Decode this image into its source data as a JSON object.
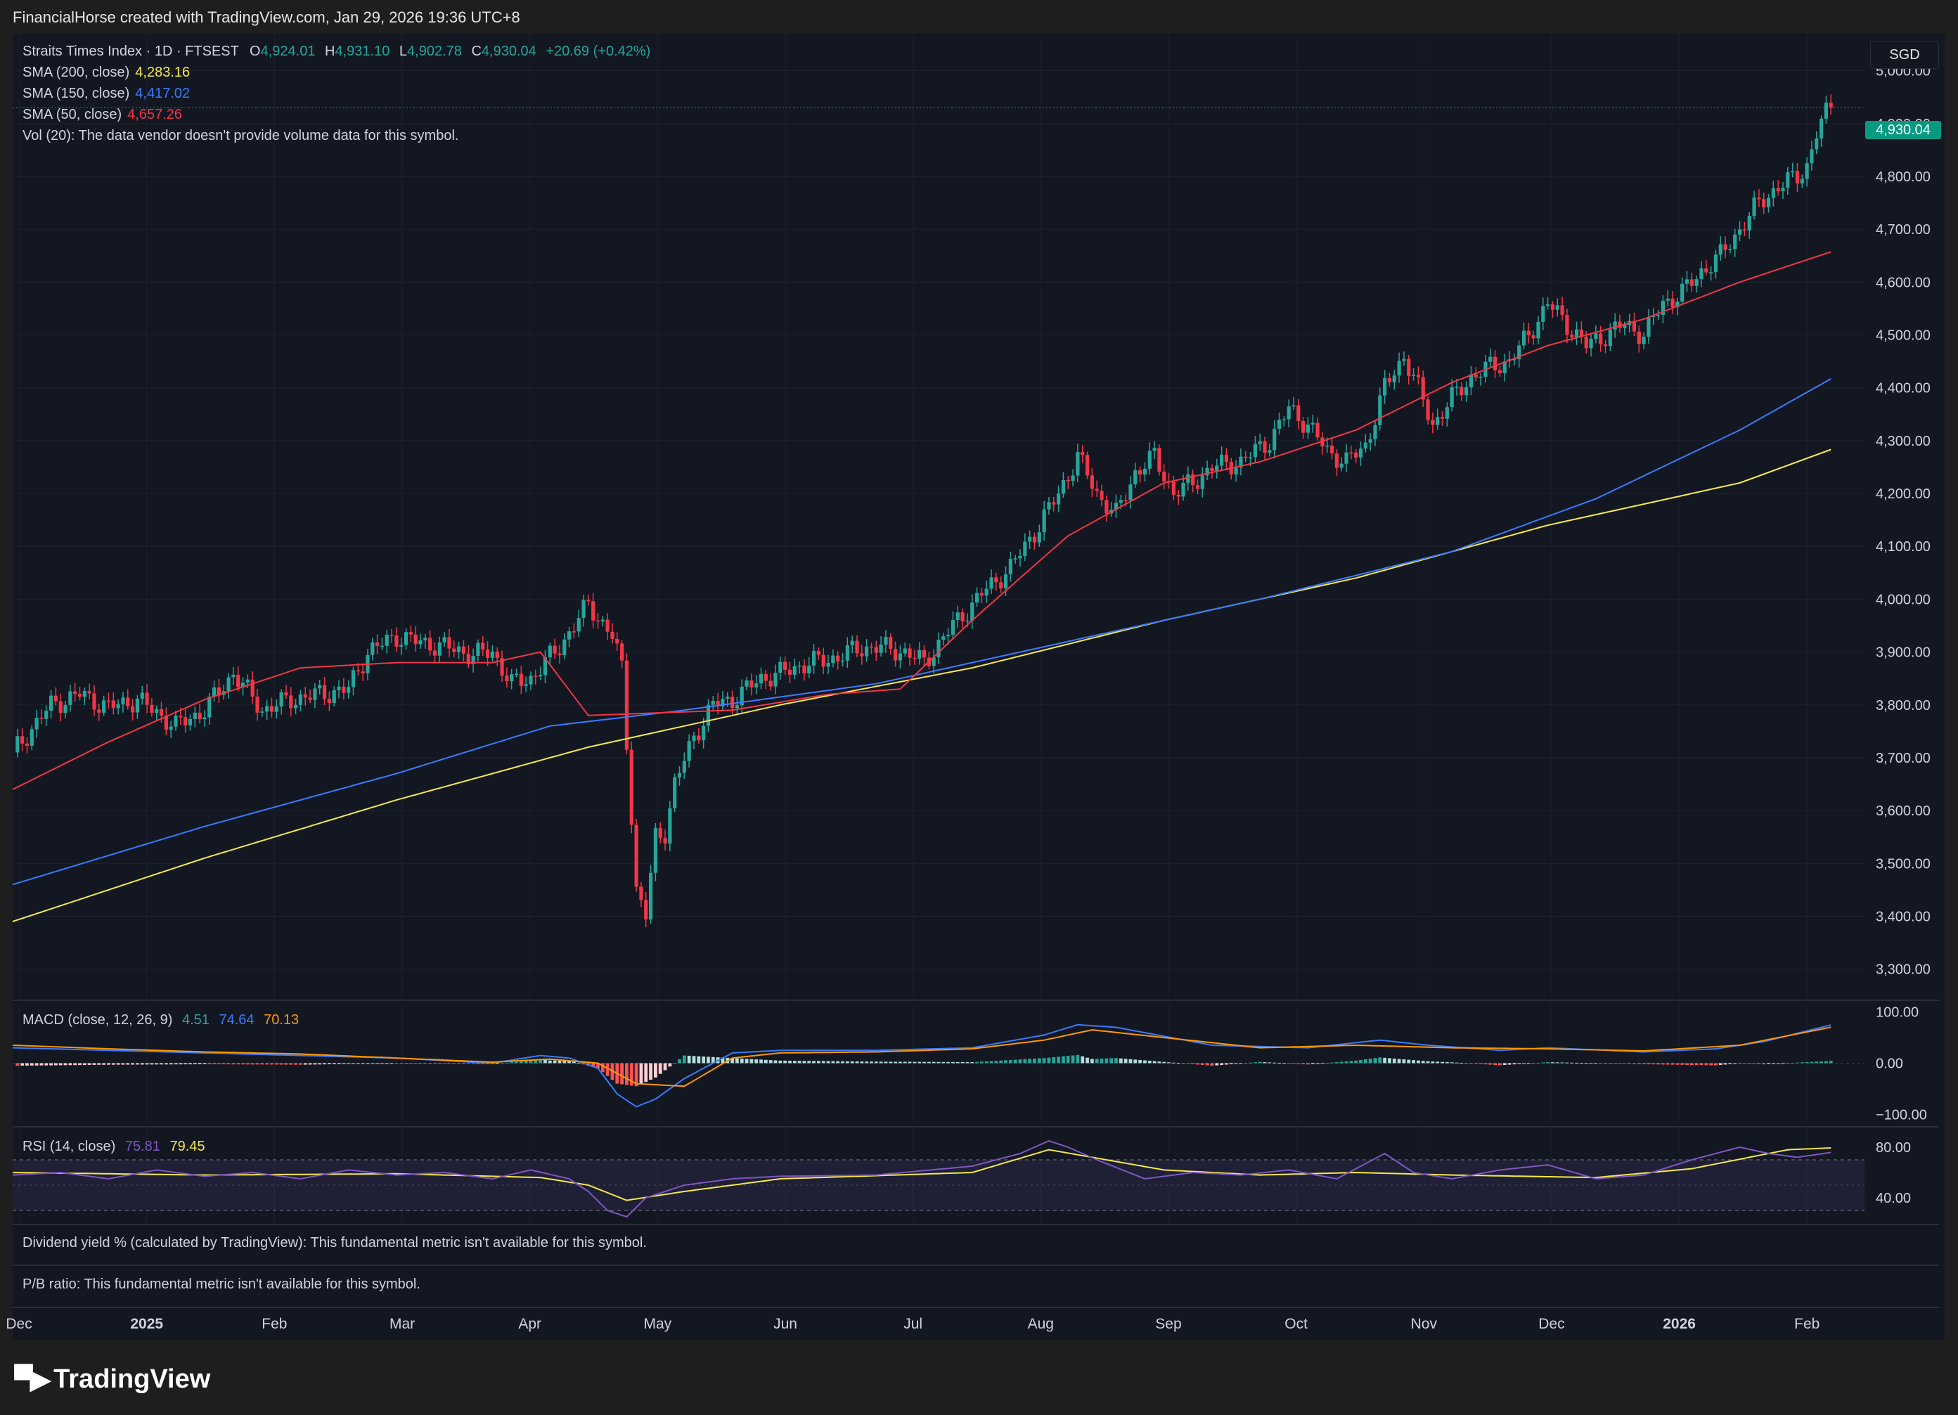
{
  "header": {
    "attribution": "FinancialHorse created with TradingView.com, Jan 29, 2026 19:36 UTC+8"
  },
  "currency_badge": "SGD",
  "legend": {
    "symbol": "Straits Times Index · 1D · FTSEST",
    "ohlc": {
      "o_label": "O",
      "o": "4,924.01",
      "h_label": "H",
      "h": "4,931.10",
      "l_label": "L",
      "l": "4,902.78",
      "c_label": "C",
      "c": "4,930.04",
      "change": "+20.69 (+0.42%)"
    },
    "sma200": {
      "label": "SMA (200, close)",
      "value": "4,283.16",
      "color": "#f5e94a"
    },
    "sma150": {
      "label": "SMA (150, close)",
      "value": "4,417.02",
      "color": "#3a7bff"
    },
    "sma50": {
      "label": "SMA (50, close)",
      "value": "4,657.26",
      "color": "#f23645"
    },
    "vol": "Vol (20): The data vendor doesn't provide volume data for this symbol."
  },
  "last_price_tag": "4,930.04",
  "macd_legend": {
    "label": "MACD (close, 12, 26, 9)",
    "hist": "4.51",
    "macd": "74.64",
    "signal": "70.13"
  },
  "rsi_legend": {
    "label": "RSI (14, close)",
    "rsi": "75.81",
    "ma": "79.45"
  },
  "messages": {
    "dividend": "Dividend yield % (calculated by TradingView): This fundamental metric isn't available for this symbol.",
    "pb": "P/B ratio: This fundamental metric isn't available for this symbol."
  },
  "logo_text": "TradingView",
  "chart_data": {
    "type": "line",
    "price_axis": {
      "ticks": [
        "5,000.00",
        "4,900.00",
        "4,800.00",
        "4,700.00",
        "4,600.00",
        "4,500.00",
        "4,400.00",
        "4,300.00",
        "4,200.00",
        "4,100.00",
        "4,000.00",
        "3,900.00",
        "3,800.00",
        "3,700.00",
        "3,600.00",
        "3,500.00",
        "3,400.00",
        "3,300.00"
      ],
      "range": [
        3245,
        5070
      ]
    },
    "time_axis": [
      "Dec",
      "2025",
      "Feb",
      "Mar",
      "Apr",
      "May",
      "Jun",
      "Jul",
      "Aug",
      "Sep",
      "Oct",
      "Nov",
      "Dec",
      "2026",
      "Feb"
    ],
    "close": [
      [
        0,
        3710
      ],
      [
        8,
        3800
      ],
      [
        14,
        3820
      ],
      [
        20,
        3795
      ],
      [
        26,
        3810
      ],
      [
        34,
        3760
      ],
      [
        40,
        3790
      ],
      [
        46,
        3860
      ],
      [
        52,
        3790
      ],
      [
        58,
        3810
      ],
      [
        64,
        3820
      ],
      [
        70,
        3830
      ],
      [
        74,
        3900
      ],
      [
        80,
        3930
      ],
      [
        84,
        3920
      ],
      [
        90,
        3910
      ],
      [
        96,
        3895
      ],
      [
        100,
        3900
      ],
      [
        104,
        3840
      ],
      [
        108,
        3850
      ],
      [
        114,
        3910
      ],
      [
        120,
        3990
      ],
      [
        125,
        3930
      ],
      [
        127,
        3870
      ],
      [
        130,
        3450
      ],
      [
        132,
        3400
      ],
      [
        134,
        3550
      ],
      [
        136,
        3560
      ],
      [
        138,
        3650
      ],
      [
        142,
        3740
      ],
      [
        146,
        3800
      ],
      [
        150,
        3810
      ],
      [
        156,
        3850
      ],
      [
        160,
        3860
      ],
      [
        166,
        3880
      ],
      [
        170,
        3885
      ],
      [
        176,
        3905
      ],
      [
        180,
        3910
      ],
      [
        186,
        3900
      ],
      [
        190,
        3880
      ],
      [
        196,
        3950
      ],
      [
        202,
        4010
      ],
      [
        208,
        4060
      ],
      [
        214,
        4140
      ],
      [
        218,
        4200
      ],
      [
        222,
        4270
      ],
      [
        226,
        4200
      ],
      [
        230,
        4160
      ],
      [
        234,
        4240
      ],
      [
        238,
        4270
      ],
      [
        242,
        4200
      ],
      [
        246,
        4220
      ],
      [
        250,
        4250
      ],
      [
        256,
        4260
      ],
      [
        262,
        4300
      ],
      [
        266,
        4360
      ],
      [
        270,
        4330
      ],
      [
        274,
        4280
      ],
      [
        278,
        4260
      ],
      [
        282,
        4290
      ],
      [
        286,
        4400
      ],
      [
        290,
        4460
      ],
      [
        292,
        4420
      ],
      [
        296,
        4330
      ],
      [
        300,
        4380
      ],
      [
        304,
        4420
      ],
      [
        308,
        4440
      ],
      [
        312,
        4450
      ],
      [
        316,
        4500
      ],
      [
        320,
        4560
      ],
      [
        324,
        4520
      ],
      [
        328,
        4480
      ],
      [
        332,
        4500
      ],
      [
        336,
        4520
      ],
      [
        340,
        4500
      ],
      [
        344,
        4560
      ],
      [
        348,
        4580
      ],
      [
        352,
        4620
      ],
      [
        356,
        4650
      ],
      [
        360,
        4700
      ],
      [
        364,
        4750
      ],
      [
        368,
        4780
      ],
      [
        372,
        4800
      ],
      [
        374,
        4820
      ],
      [
        376,
        4880
      ],
      [
        378,
        4920
      ],
      [
        379,
        4930.04
      ]
    ],
    "series": [
      {
        "name": "SMA (200, close)",
        "color": "#f5e94a",
        "values": [
          [
            0,
            3390
          ],
          [
            40,
            3510
          ],
          [
            80,
            3620
          ],
          [
            120,
            3720
          ],
          [
            160,
            3800
          ],
          [
            200,
            3870
          ],
          [
            240,
            3960
          ],
          [
            280,
            4040
          ],
          [
            320,
            4140
          ],
          [
            360,
            4220
          ],
          [
            379,
            4283.16
          ]
        ]
      },
      {
        "name": "SMA (150, close)",
        "color": "#3a7bff",
        "values": [
          [
            0,
            3460
          ],
          [
            40,
            3570
          ],
          [
            80,
            3670
          ],
          [
            112,
            3760
          ],
          [
            140,
            3790
          ],
          [
            180,
            3840
          ],
          [
            220,
            3920
          ],
          [
            260,
            4000
          ],
          [
            300,
            4090
          ],
          [
            330,
            4190
          ],
          [
            360,
            4320
          ],
          [
            379,
            4417.02
          ]
        ]
      },
      {
        "name": "SMA (50, close)",
        "color": "#f23645",
        "values": [
          [
            0,
            3640
          ],
          [
            20,
            3730
          ],
          [
            40,
            3810
          ],
          [
            60,
            3870
          ],
          [
            80,
            3880
          ],
          [
            100,
            3880
          ],
          [
            110,
            3900
          ],
          [
            120,
            3780
          ],
          [
            150,
            3790
          ],
          [
            170,
            3820
          ],
          [
            185,
            3830
          ],
          [
            200,
            3960
          ],
          [
            220,
            4120
          ],
          [
            240,
            4220
          ],
          [
            260,
            4260
          ],
          [
            270,
            4290
          ],
          [
            280,
            4320
          ],
          [
            300,
            4410
          ],
          [
            320,
            4480
          ],
          [
            340,
            4530
          ],
          [
            360,
            4600
          ],
          [
            379,
            4657.26
          ]
        ]
      }
    ],
    "macd": {
      "axis": {
        "ticks": [
          "100.00",
          "0.00",
          "-100.00"
        ],
        "range": [
          -120,
          120
        ]
      },
      "macd_line": [
        [
          0,
          30
        ],
        [
          20,
          25
        ],
        [
          40,
          20
        ],
        [
          60,
          15
        ],
        [
          80,
          10
        ],
        [
          100,
          0
        ],
        [
          110,
          15
        ],
        [
          116,
          10
        ],
        [
          122,
          -10
        ],
        [
          126,
          -60
        ],
        [
          130,
          -85
        ],
        [
          134,
          -70
        ],
        [
          140,
          -30
        ],
        [
          150,
          20
        ],
        [
          160,
          25
        ],
        [
          180,
          25
        ],
        [
          200,
          30
        ],
        [
          215,
          55
        ],
        [
          222,
          75
        ],
        [
          230,
          70
        ],
        [
          250,
          35
        ],
        [
          270,
          30
        ],
        [
          285,
          45
        ],
        [
          295,
          35
        ],
        [
          310,
          25
        ],
        [
          320,
          30
        ],
        [
          340,
          22
        ],
        [
          355,
          28
        ],
        [
          365,
          42
        ],
        [
          379,
          74.64
        ]
      ],
      "signal_line": [
        [
          0,
          35
        ],
        [
          20,
          28
        ],
        [
          40,
          22
        ],
        [
          60,
          18
        ],
        [
          80,
          10
        ],
        [
          100,
          2
        ],
        [
          112,
          8
        ],
        [
          122,
          0
        ],
        [
          130,
          -40
        ],
        [
          140,
          -45
        ],
        [
          150,
          10
        ],
        [
          160,
          20
        ],
        [
          180,
          22
        ],
        [
          200,
          28
        ],
        [
          215,
          45
        ],
        [
          225,
          65
        ],
        [
          240,
          50
        ],
        [
          260,
          30
        ],
        [
          280,
          35
        ],
        [
          300,
          30
        ],
        [
          320,
          28
        ],
        [
          340,
          24
        ],
        [
          360,
          35
        ],
        [
          379,
          70.13
        ]
      ]
    },
    "rsi": {
      "axis": {
        "ticks": [
          "80.00",
          "40.00"
        ],
        "range": [
          20,
          95
        ]
      },
      "bands": [
        70,
        30
      ],
      "rsi_line": [
        [
          0,
          58
        ],
        [
          10,
          60
        ],
        [
          20,
          55
        ],
        [
          30,
          62
        ],
        [
          40,
          57
        ],
        [
          50,
          60
        ],
        [
          60,
          55
        ],
        [
          70,
          62
        ],
        [
          80,
          58
        ],
        [
          90,
          60
        ],
        [
          100,
          55
        ],
        [
          108,
          62
        ],
        [
          116,
          55
        ],
        [
          120,
          45
        ],
        [
          124,
          30
        ],
        [
          128,
          25
        ],
        [
          132,
          40
        ],
        [
          140,
          50
        ],
        [
          150,
          55
        ],
        [
          160,
          57
        ],
        [
          180,
          58
        ],
        [
          200,
          65
        ],
        [
          210,
          75
        ],
        [
          216,
          85
        ],
        [
          220,
          80
        ],
        [
          226,
          70
        ],
        [
          236,
          55
        ],
        [
          246,
          60
        ],
        [
          256,
          58
        ],
        [
          266,
          62
        ],
        [
          276,
          55
        ],
        [
          286,
          75
        ],
        [
          292,
          60
        ],
        [
          300,
          55
        ],
        [
          310,
          62
        ],
        [
          320,
          66
        ],
        [
          330,
          55
        ],
        [
          340,
          58
        ],
        [
          350,
          70
        ],
        [
          360,
          80
        ],
        [
          366,
          75
        ],
        [
          372,
          72
        ],
        [
          379,
          75.81
        ]
      ],
      "ma_line": [
        [
          0,
          60
        ],
        [
          40,
          58
        ],
        [
          80,
          59
        ],
        [
          110,
          56
        ],
        [
          120,
          50
        ],
        [
          128,
          38
        ],
        [
          140,
          45
        ],
        [
          160,
          55
        ],
        [
          200,
          60
        ],
        [
          216,
          78
        ],
        [
          240,
          62
        ],
        [
          260,
          58
        ],
        [
          280,
          60
        ],
        [
          300,
          58
        ],
        [
          330,
          56
        ],
        [
          350,
          63
        ],
        [
          370,
          78
        ],
        [
          379,
          79.45
        ]
      ]
    }
  }
}
